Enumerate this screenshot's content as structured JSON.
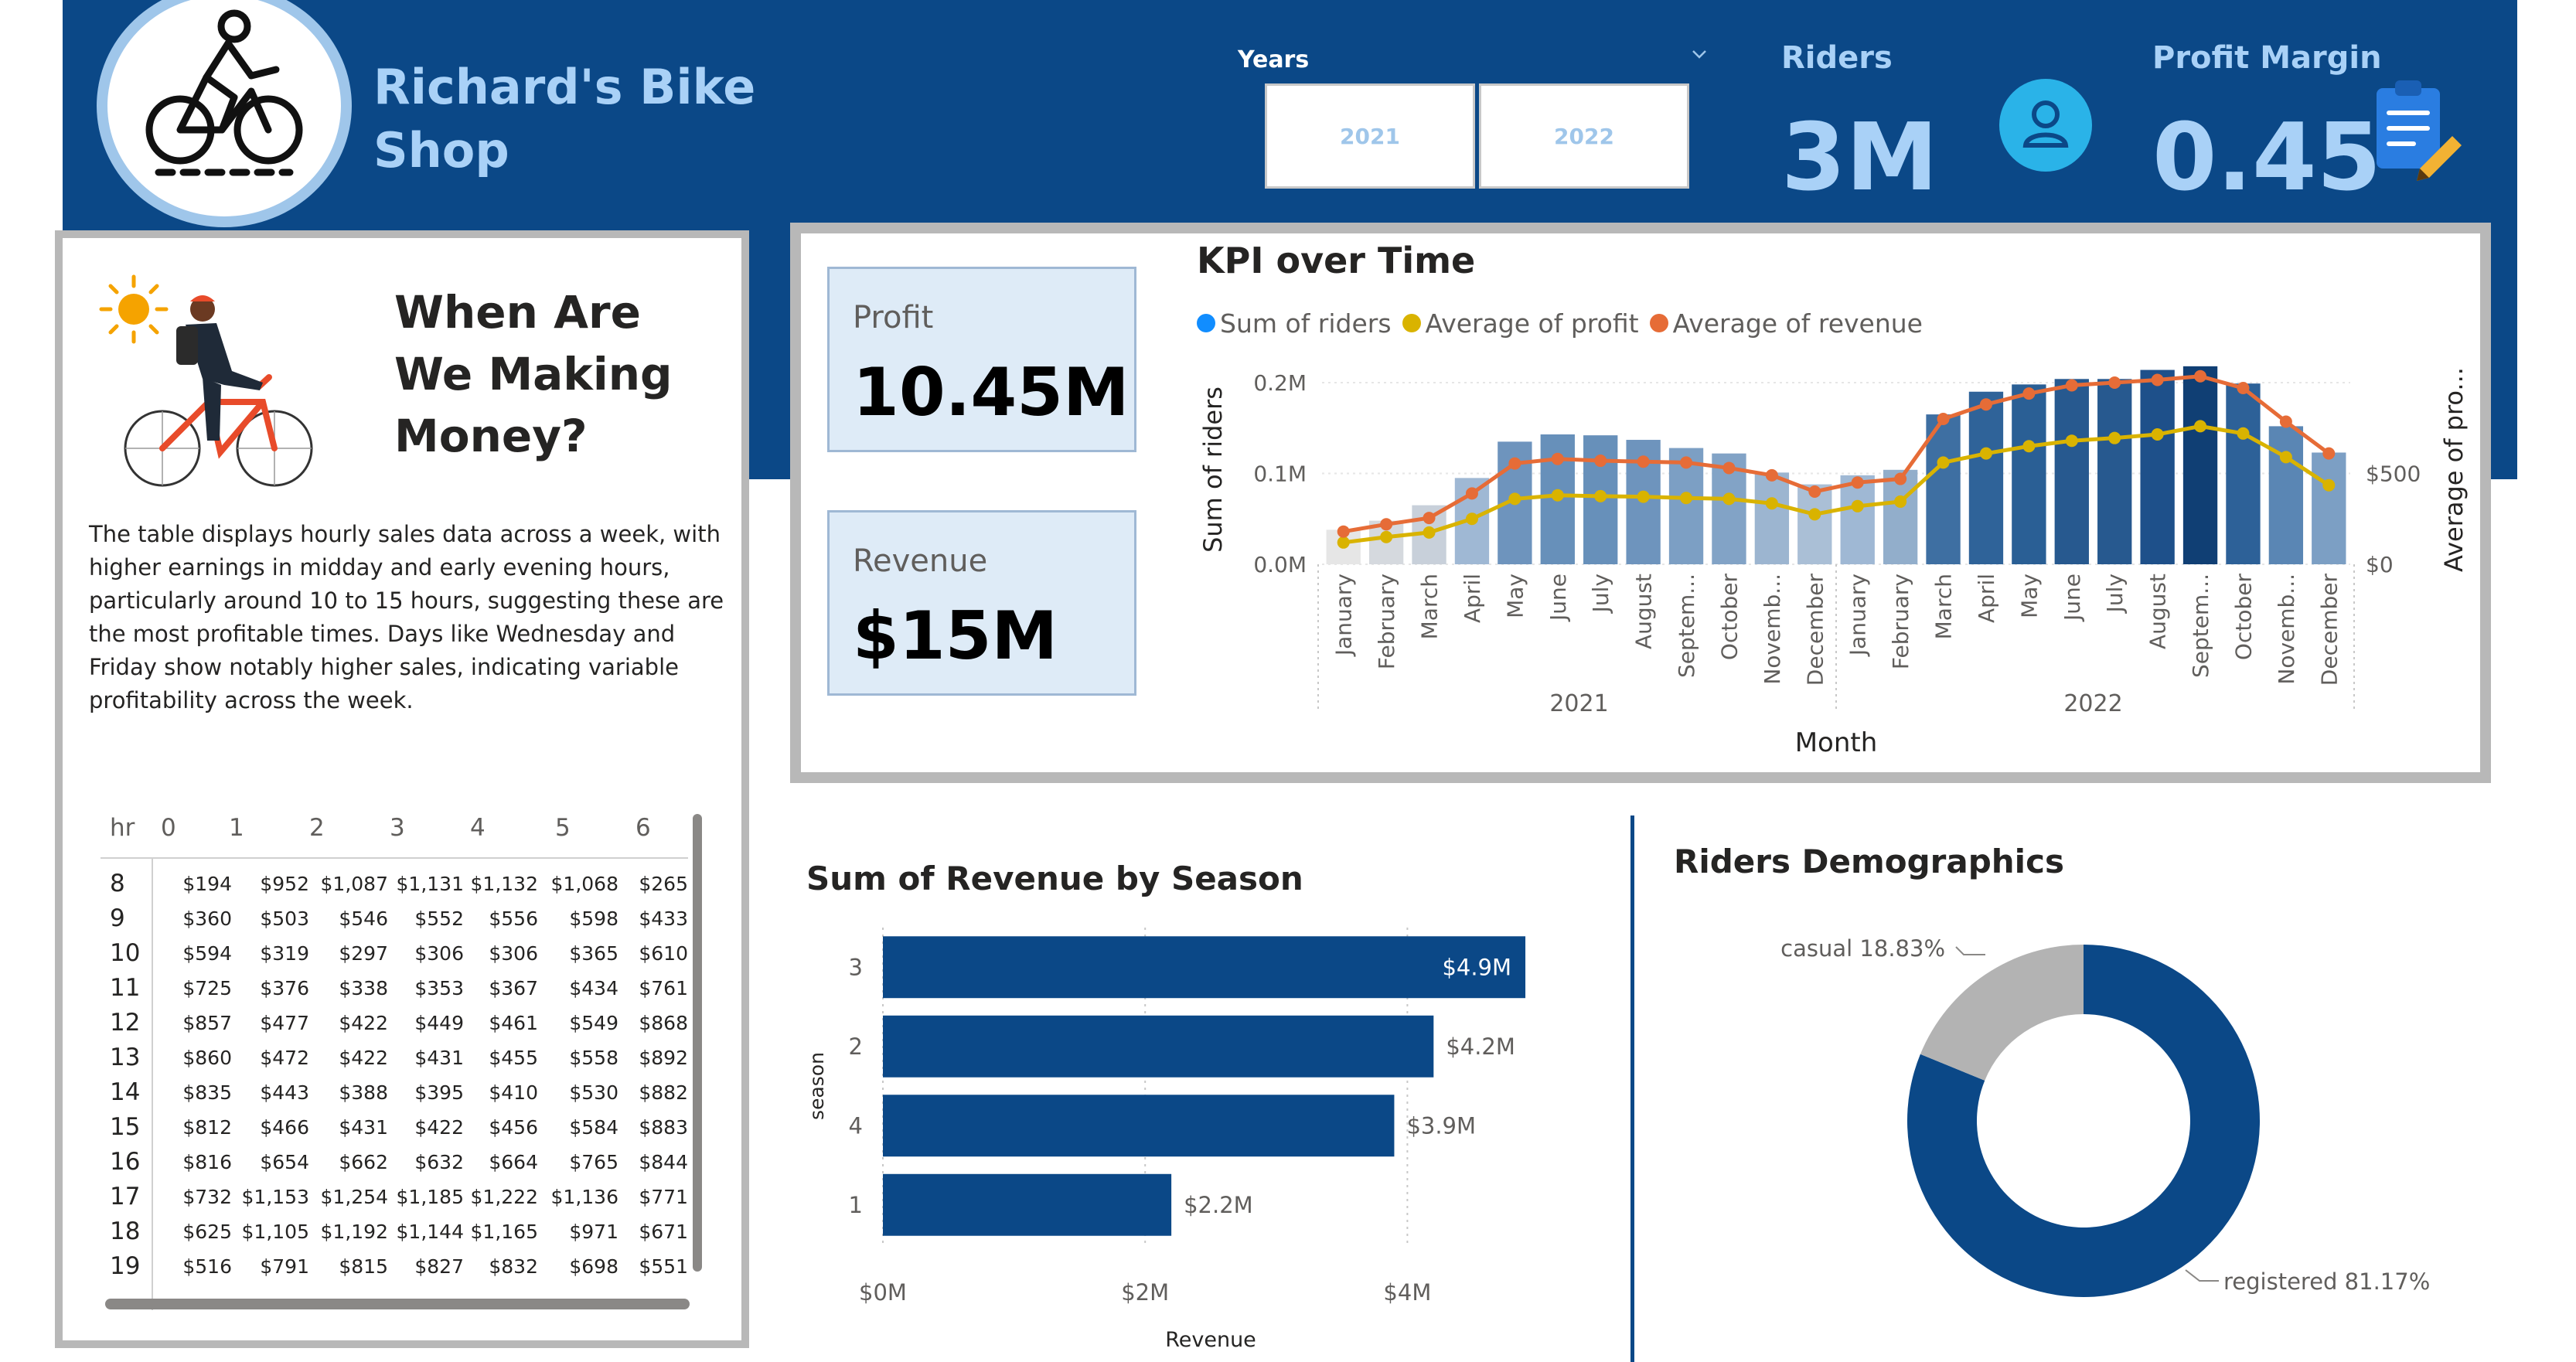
{
  "header": {
    "shop_name": "Richard's Bike Shop",
    "years_label": "Years",
    "year_options": [
      "2021",
      "2022"
    ],
    "riders_label": "Riders",
    "riders_value": "3M",
    "margin_label": "Profit Margin",
    "margin_value": "0.45"
  },
  "left_panel": {
    "title": "When Are We Making Money?",
    "description": "The table displays hourly sales data across a week, with higher earnings in midday and early evening hours, particularly around 10 to 15 hours, suggesting these are the most profitable times. Days like Wednesday and Friday show notably higher sales, indicating variable profitability across the week.",
    "matrix": {
      "row_header": "hr",
      "columns": [
        "0",
        "1",
        "2",
        "3",
        "4",
        "5",
        "6"
      ],
      "rows": [
        {
          "hr": "8",
          "values": [
            "$194",
            "$952",
            "$1,087",
            "$1,131",
            "$1,132",
            "$1,068",
            "$265"
          ]
        },
        {
          "hr": "9",
          "values": [
            "$360",
            "$503",
            "$546",
            "$552",
            "$556",
            "$598",
            "$433"
          ]
        },
        {
          "hr": "10",
          "values": [
            "$594",
            "$319",
            "$297",
            "$306",
            "$306",
            "$365",
            "$610"
          ]
        },
        {
          "hr": "11",
          "values": [
            "$725",
            "$376",
            "$338",
            "$353",
            "$367",
            "$434",
            "$761"
          ]
        },
        {
          "hr": "12",
          "values": [
            "$857",
            "$477",
            "$422",
            "$449",
            "$461",
            "$549",
            "$868"
          ]
        },
        {
          "hr": "13",
          "values": [
            "$860",
            "$472",
            "$422",
            "$431",
            "$455",
            "$558",
            "$892"
          ]
        },
        {
          "hr": "14",
          "values": [
            "$835",
            "$443",
            "$388",
            "$395",
            "$410",
            "$530",
            "$882"
          ]
        },
        {
          "hr": "15",
          "values": [
            "$812",
            "$466",
            "$431",
            "$422",
            "$456",
            "$584",
            "$883"
          ]
        },
        {
          "hr": "16",
          "values": [
            "$816",
            "$654",
            "$662",
            "$632",
            "$664",
            "$765",
            "$844"
          ]
        },
        {
          "hr": "17",
          "values": [
            "$732",
            "$1,153",
            "$1,254",
            "$1,185",
            "$1,222",
            "$1,136",
            "$771"
          ]
        },
        {
          "hr": "18",
          "values": [
            "$625",
            "$1,105",
            "$1,192",
            "$1,144",
            "$1,165",
            "$971",
            "$671"
          ]
        },
        {
          "hr": "19",
          "values": [
            "$516",
            "$791",
            "$815",
            "$827",
            "$832",
            "$698",
            "$551"
          ]
        }
      ]
    }
  },
  "cards": {
    "profit_label": "Profit",
    "profit_value": "10.45M",
    "revenue_label": "Revenue",
    "revenue_value": "$15M"
  },
  "chart_data": [
    {
      "type": "bar+line",
      "title": "KPI over Time",
      "xlabel": "Month",
      "ylabel": "Sum of riders",
      "ylabel_right": "Average of pro...",
      "legend": [
        "Sum of riders",
        "Average of profit",
        "Average of revenue"
      ],
      "legend_position": "top-left",
      "categories": [
        "January",
        "February",
        "March",
        "April",
        "May",
        "June",
        "July",
        "August",
        "Septem...",
        "October",
        "Novemb...",
        "December",
        "January",
        "February",
        "March",
        "April",
        "May",
        "June",
        "July",
        "August",
        "Septem...",
        "October",
        "Novemb...",
        "December"
      ],
      "x_groups": [
        {
          "label": "2021",
          "from": 0,
          "to": 11
        },
        {
          "label": "2022",
          "from": 12,
          "to": 23
        }
      ],
      "y_ticks": [
        "0.0M",
        "0.1M",
        "0.2M"
      ],
      "y_right_ticks": [
        "$0",
        "$500"
      ],
      "ylim": [
        0,
        0.2
      ],
      "ylim_right": [
        0,
        1000
      ],
      "grid": true,
      "series": [
        {
          "name": "Sum of riders",
          "kind": "bar",
          "values": [
            0.038,
            0.048,
            0.065,
            0.095,
            0.135,
            0.143,
            0.142,
            0.137,
            0.128,
            0.122,
            0.101,
            0.088,
            0.098,
            0.104,
            0.165,
            0.19,
            0.198,
            0.204,
            0.204,
            0.214,
            0.218,
            0.199,
            0.152,
            0.123
          ]
        },
        {
          "name": "Average of profit",
          "kind": "line",
          "color": "#d9b300",
          "values": [
            120,
            150,
            175,
            250,
            360,
            380,
            375,
            372,
            365,
            360,
            335,
            275,
            320,
            345,
            560,
            610,
            650,
            680,
            695,
            715,
            760,
            720,
            590,
            435
          ]
        },
        {
          "name": "Average of revenue",
          "kind": "line",
          "color": "#e66c37",
          "values": [
            180,
            220,
            255,
            390,
            555,
            580,
            570,
            565,
            560,
            530,
            490,
            400,
            450,
            470,
            800,
            880,
            940,
            985,
            1000,
            1015,
            1035,
            970,
            785,
            610
          ]
        }
      ],
      "bar_colors": [
        "#e6e6e6",
        "#d5d9de",
        "#c8d0da",
        "#9fb8d4",
        "#6e94bd",
        "#6790ba",
        "#6790ba",
        "#6e94bd",
        "#7c9fc4",
        "#82a3c6",
        "#9cb5d0",
        "#aabfd6",
        "#9fb8d4",
        "#92aecb",
        "#3e6fa2",
        "#2f6399",
        "#2a5f95",
        "#27598f",
        "#27598f",
        "#1e508a",
        "#103f74",
        "#2d6198",
        "#5a86b4",
        "#7c9fc4"
      ]
    },
    {
      "type": "bar",
      "orientation": "horizontal",
      "title": "Sum of Revenue by Season",
      "xlabel": "Revenue",
      "ylabel": "season",
      "categories": [
        "3",
        "2",
        "4",
        "1"
      ],
      "values": [
        4.9,
        4.2,
        3.9,
        2.2
      ],
      "value_labels": [
        "$4.9M",
        "$4.2M",
        "$3.9M",
        "$2.2M"
      ],
      "x_ticks": [
        "$0M",
        "$2M",
        "$4M"
      ],
      "xlim": [
        0,
        5
      ],
      "color": "#0b4887"
    },
    {
      "type": "pie",
      "subtype": "donut",
      "title": "Riders Demographics",
      "labels": [
        "registered",
        "casual"
      ],
      "values": [
        81.17,
        18.83
      ],
      "value_labels": [
        "registered 81.17%",
        "casual 18.83%"
      ],
      "colors": [
        "#0b4887",
        "#b3b3b3"
      ]
    }
  ]
}
